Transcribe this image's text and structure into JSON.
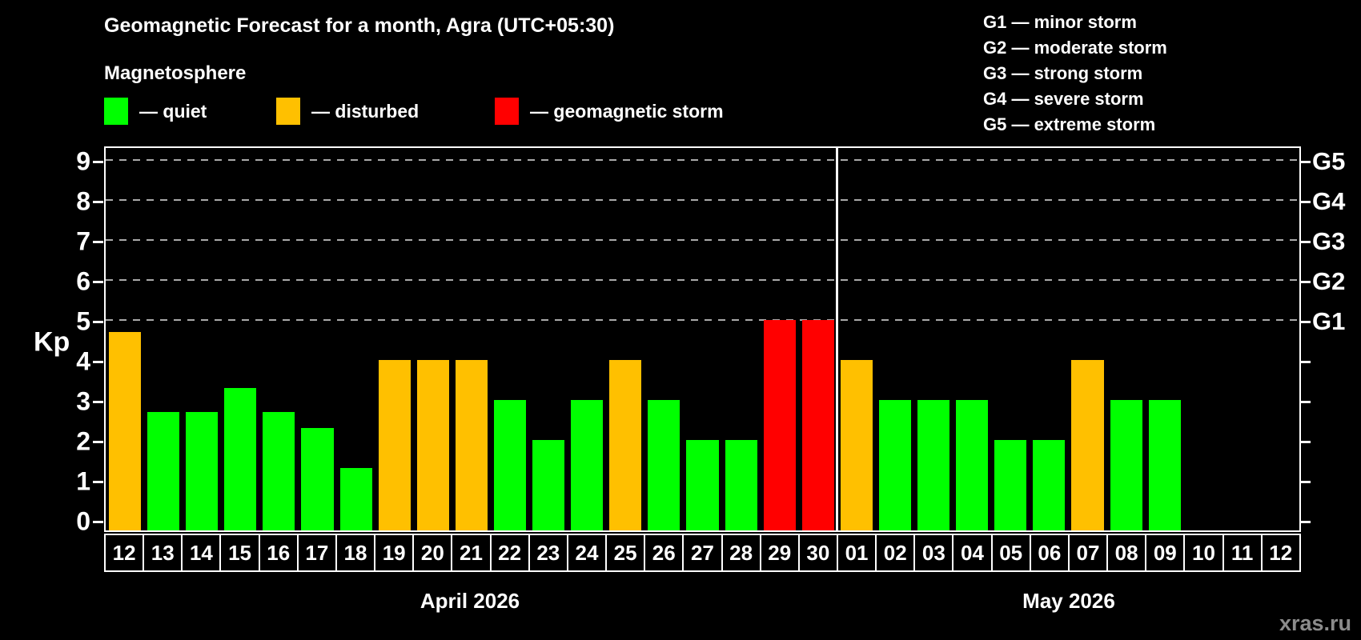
{
  "title": "Geomagnetic Forecast for a month, Agra (UTC+05:30)",
  "subtitle": "Magnetosphere",
  "legend": {
    "items": [
      {
        "key": "quiet",
        "label": "— quiet"
      },
      {
        "key": "disturbed",
        "label": "— disturbed"
      },
      {
        "key": "storm",
        "label": "— geomagnetic storm"
      }
    ]
  },
  "storm_scale_legend": [
    "G1 — minor storm",
    "G2 — moderate storm",
    "G3 — strong storm",
    "G4 — severe storm",
    "G5 — extreme storm"
  ],
  "watermark": "xras.ru",
  "colors": {
    "quiet": "#00ff00",
    "disturbed": "#ffc000",
    "storm": "#ff0000",
    "background": "#000000",
    "axis": "#ffffff",
    "gridline": "#aaaaaa",
    "watermark_text": "#8c8c8c"
  },
  "chart_data": {
    "type": "bar",
    "ylabel": "Kp",
    "ylim": [
      0,
      9
    ],
    "yticks": [
      0,
      1,
      2,
      3,
      4,
      5,
      6,
      7,
      8,
      9
    ],
    "gridlines_at_kp": [
      5,
      6,
      7,
      8,
      9
    ],
    "right_axis": [
      {
        "label": "G1",
        "kp": 5
      },
      {
        "label": "G2",
        "kp": 6
      },
      {
        "label": "G3",
        "kp": 7
      },
      {
        "label": "G4",
        "kp": 8
      },
      {
        "label": "G5",
        "kp": 9
      }
    ],
    "months": [
      {
        "label": "April 2026",
        "days": [
          {
            "day": "12",
            "kp": 4.7,
            "status": "disturbed"
          },
          {
            "day": "13",
            "kp": 2.7,
            "status": "quiet"
          },
          {
            "day": "14",
            "kp": 2.7,
            "status": "quiet"
          },
          {
            "day": "15",
            "kp": 3.3,
            "status": "quiet"
          },
          {
            "day": "16",
            "kp": 2.7,
            "status": "quiet"
          },
          {
            "day": "17",
            "kp": 2.3,
            "status": "quiet"
          },
          {
            "day": "18",
            "kp": 1.3,
            "status": "quiet"
          },
          {
            "day": "19",
            "kp": 4.0,
            "status": "disturbed"
          },
          {
            "day": "20",
            "kp": 4.0,
            "status": "disturbed"
          },
          {
            "day": "21",
            "kp": 4.0,
            "status": "disturbed"
          },
          {
            "day": "22",
            "kp": 3.0,
            "status": "quiet"
          },
          {
            "day": "23",
            "kp": 2.0,
            "status": "quiet"
          },
          {
            "day": "24",
            "kp": 3.0,
            "status": "quiet"
          },
          {
            "day": "25",
            "kp": 4.0,
            "status": "disturbed"
          },
          {
            "day": "26",
            "kp": 3.0,
            "status": "quiet"
          },
          {
            "day": "27",
            "kp": 2.0,
            "status": "quiet"
          },
          {
            "day": "28",
            "kp": 2.0,
            "status": "quiet"
          },
          {
            "day": "29",
            "kp": 5.0,
            "status": "storm"
          },
          {
            "day": "30",
            "kp": 5.0,
            "status": "storm"
          }
        ]
      },
      {
        "label": "May 2026",
        "days": [
          {
            "day": "01",
            "kp": 4.0,
            "status": "disturbed"
          },
          {
            "day": "02",
            "kp": 3.0,
            "status": "quiet"
          },
          {
            "day": "03",
            "kp": 3.0,
            "status": "quiet"
          },
          {
            "day": "04",
            "kp": 3.0,
            "status": "quiet"
          },
          {
            "day": "05",
            "kp": 2.0,
            "status": "quiet"
          },
          {
            "day": "06",
            "kp": 2.0,
            "status": "quiet"
          },
          {
            "day": "07",
            "kp": 4.0,
            "status": "disturbed"
          },
          {
            "day": "08",
            "kp": 3.0,
            "status": "quiet"
          },
          {
            "day": "09",
            "kp": 3.0,
            "status": "quiet"
          },
          {
            "day": "10",
            "kp": null,
            "status": null
          },
          {
            "day": "11",
            "kp": null,
            "status": null
          },
          {
            "day": "12",
            "kp": null,
            "status": null
          }
        ]
      }
    ]
  }
}
